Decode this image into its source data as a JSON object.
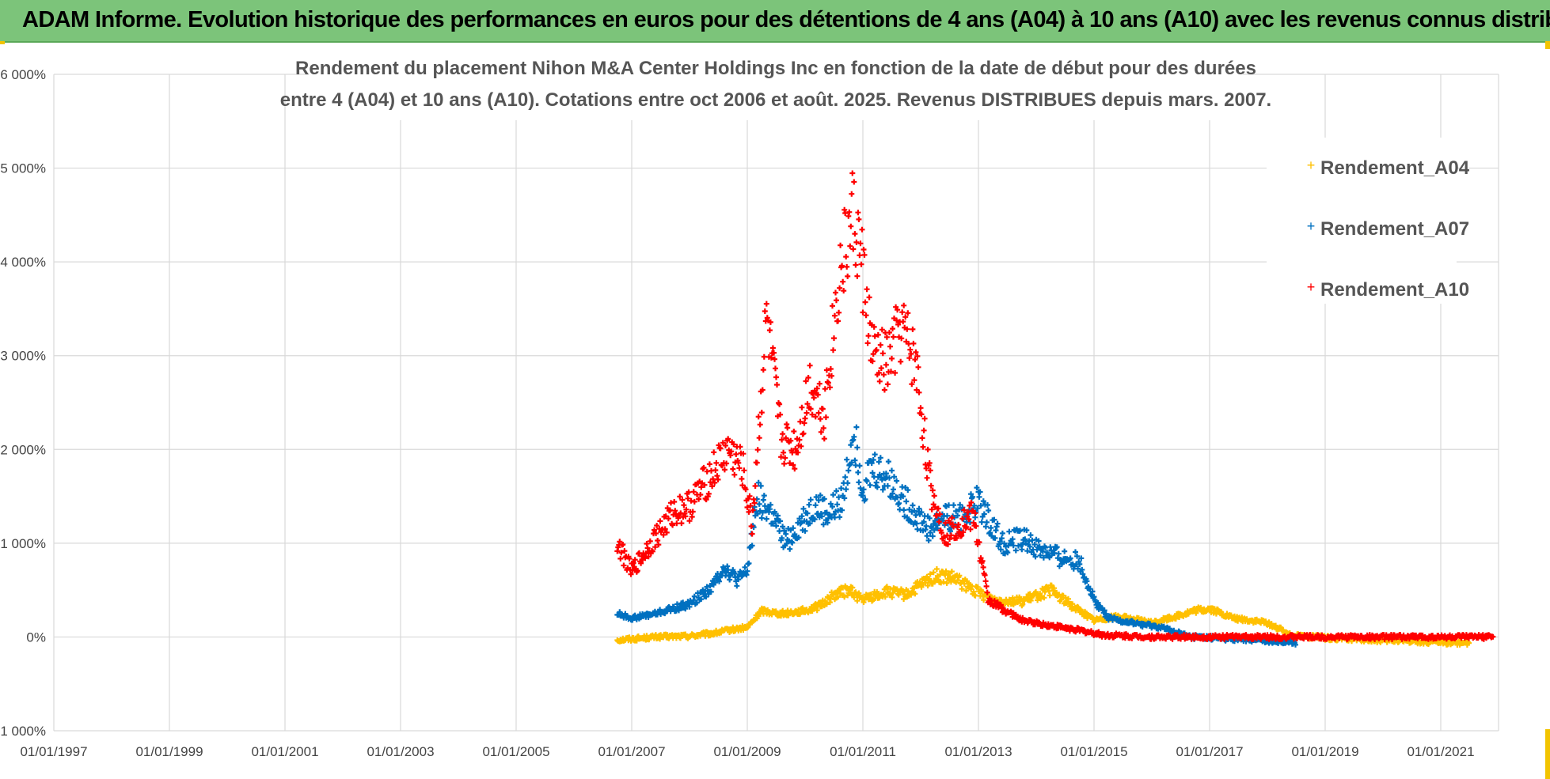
{
  "banner": {
    "title": "ADAM Informe. Evolution historique des performances en euros pour des détentions de 4 ans (A04) à 10 ans (A10) avec les revenus connus distribués"
  },
  "colors": {
    "banner": "#7cc47a",
    "A04": "#ffc000",
    "A07": "#0070c0",
    "A10": "#ff0000",
    "grid": "#d9d9d9"
  },
  "chart_data": {
    "type": "scatter",
    "title_lines": [
      "Rendement du placement Nihon M&A Center Holdings Inc en fonction de la date de début pour des durées",
      "entre 4 (A04) et 10 ans (A10). Cotations entre oct 2006 et août. 2025. Revenus DISTRIBUES depuis mars. 2007."
    ],
    "xlabel": "",
    "ylabel": "",
    "x_range": [
      "1997-01-01",
      "2022-01-01"
    ],
    "y_range": [
      -1000,
      6000
    ],
    "y_ticks": [
      -1000,
      0,
      1000,
      2000,
      3000,
      4000,
      5000,
      6000
    ],
    "y_tick_labels": [
      "-1 000%",
      "0%",
      "1 000%",
      "2 000%",
      "3 000%",
      "4 000%",
      "5 000%",
      "6 000%"
    ],
    "x_tick_labels": [
      "01/01/1997",
      "01/01/1999",
      "01/01/2001",
      "01/01/2003",
      "01/01/2005",
      "01/01/2007",
      "01/01/2009",
      "01/01/2011",
      "01/01/2013",
      "01/01/2015",
      "01/01/2017",
      "01/01/2019",
      "01/01/2021"
    ],
    "marker": "+",
    "grid": true,
    "legend_position": "top-right",
    "series": [
      {
        "name": "Rendement_A04",
        "color": "#ffc000",
        "points": [
          [
            "2006-10",
            -30
          ],
          [
            "2007-01",
            -20
          ],
          [
            "2007-06",
            0
          ],
          [
            "2008-01",
            10
          ],
          [
            "2008-06",
            40
          ],
          [
            "2008-10",
            80
          ],
          [
            "2009-01",
            100
          ],
          [
            "2009-04",
            280
          ],
          [
            "2009-08",
            250
          ],
          [
            "2010-01",
            280
          ],
          [
            "2010-04",
            330
          ],
          [
            "2010-07",
            450
          ],
          [
            "2010-10",
            500
          ],
          [
            "2011-01",
            400
          ],
          [
            "2011-06",
            480
          ],
          [
            "2011-10",
            450
          ],
          [
            "2012-01",
            550
          ],
          [
            "2012-04",
            650
          ],
          [
            "2012-08",
            620
          ],
          [
            "2012-12",
            500
          ],
          [
            "2013-04",
            400
          ],
          [
            "2013-10",
            380
          ],
          [
            "2014-04",
            500
          ],
          [
            "2014-08",
            350
          ],
          [
            "2015-01",
            180
          ],
          [
            "2015-06",
            220
          ],
          [
            "2016-01",
            150
          ],
          [
            "2016-06",
            220
          ],
          [
            "2016-10",
            280
          ],
          [
            "2017-01",
            300
          ],
          [
            "2017-06",
            200
          ],
          [
            "2018-01",
            150
          ],
          [
            "2018-06",
            20
          ],
          [
            "2019-01",
            -10
          ],
          [
            "2019-06",
            -20
          ],
          [
            "2020-01",
            -40
          ],
          [
            "2020-06",
            -40
          ],
          [
            "2021-01",
            -60
          ],
          [
            "2021-07",
            -60
          ]
        ]
      },
      {
        "name": "Rendement_A07",
        "color": "#0070c0",
        "points": [
          [
            "2006-10",
            250
          ],
          [
            "2007-01",
            200
          ],
          [
            "2007-06",
            250
          ],
          [
            "2008-01",
            350
          ],
          [
            "2008-06",
            550
          ],
          [
            "2008-08",
            750
          ],
          [
            "2008-11",
            600
          ],
          [
            "2009-01",
            700
          ],
          [
            "2009-03",
            1500
          ],
          [
            "2009-06",
            1300
          ],
          [
            "2009-09",
            1000
          ],
          [
            "2009-12",
            1200
          ],
          [
            "2010-03",
            1400
          ],
          [
            "2010-06",
            1300
          ],
          [
            "2010-09",
            1500
          ],
          [
            "2010-11",
            2200
          ],
          [
            "2011-01",
            1600
          ],
          [
            "2011-03",
            1800
          ],
          [
            "2011-06",
            1700
          ],
          [
            "2011-09",
            1500
          ],
          [
            "2011-12",
            1300
          ],
          [
            "2012-03",
            1150
          ],
          [
            "2012-06",
            1300
          ],
          [
            "2012-09",
            1250
          ],
          [
            "2013-01",
            1450
          ],
          [
            "2013-06",
            1000
          ],
          [
            "2013-10",
            1050
          ],
          [
            "2014-01",
            950
          ],
          [
            "2014-06",
            850
          ],
          [
            "2014-10",
            800
          ],
          [
            "2015-01",
            400
          ],
          [
            "2015-04",
            200
          ],
          [
            "2015-09",
            150
          ],
          [
            "2016-03",
            100
          ],
          [
            "2016-09",
            0
          ],
          [
            "2017-06",
            -20
          ],
          [
            "2018-01",
            -40
          ],
          [
            "2018-07",
            -60
          ]
        ]
      },
      {
        "name": "Rendement_A10",
        "color": "#ff0000",
        "points": [
          [
            "2006-10",
            1000
          ],
          [
            "2007-01",
            700
          ],
          [
            "2007-05",
            1000
          ],
          [
            "2007-10",
            1350
          ],
          [
            "2008-01",
            1400
          ],
          [
            "2008-05",
            1700
          ],
          [
            "2008-09",
            2000
          ],
          [
            "2008-12",
            1800
          ],
          [
            "2009-02",
            1200
          ],
          [
            "2009-05",
            3400
          ],
          [
            "2009-08",
            2100
          ],
          [
            "2009-11",
            2000
          ],
          [
            "2010-02",
            2700
          ],
          [
            "2010-05",
            2400
          ],
          [
            "2010-08",
            3800
          ],
          [
            "2010-11",
            4500
          ],
          [
            "2011-01",
            3900
          ],
          [
            "2011-03",
            3000
          ],
          [
            "2011-06",
            2900
          ],
          [
            "2011-09",
            3300
          ],
          [
            "2011-12",
            2900
          ],
          [
            "2012-03",
            1600
          ],
          [
            "2012-06",
            1100
          ],
          [
            "2012-09",
            1200
          ],
          [
            "2012-12",
            1300
          ],
          [
            "2013-03",
            400
          ],
          [
            "2013-06",
            300
          ],
          [
            "2013-10",
            180
          ],
          [
            "2014-03",
            130
          ],
          [
            "2014-09",
            80
          ],
          [
            "2015-03",
            20
          ],
          [
            "2016-01",
            0
          ],
          [
            "2017-01",
            0
          ],
          [
            "2018-01",
            0
          ],
          [
            "2019-01",
            0
          ],
          [
            "2020-01",
            0
          ],
          [
            "2021-01",
            0
          ],
          [
            "2021-12",
            0
          ]
        ]
      }
    ]
  }
}
